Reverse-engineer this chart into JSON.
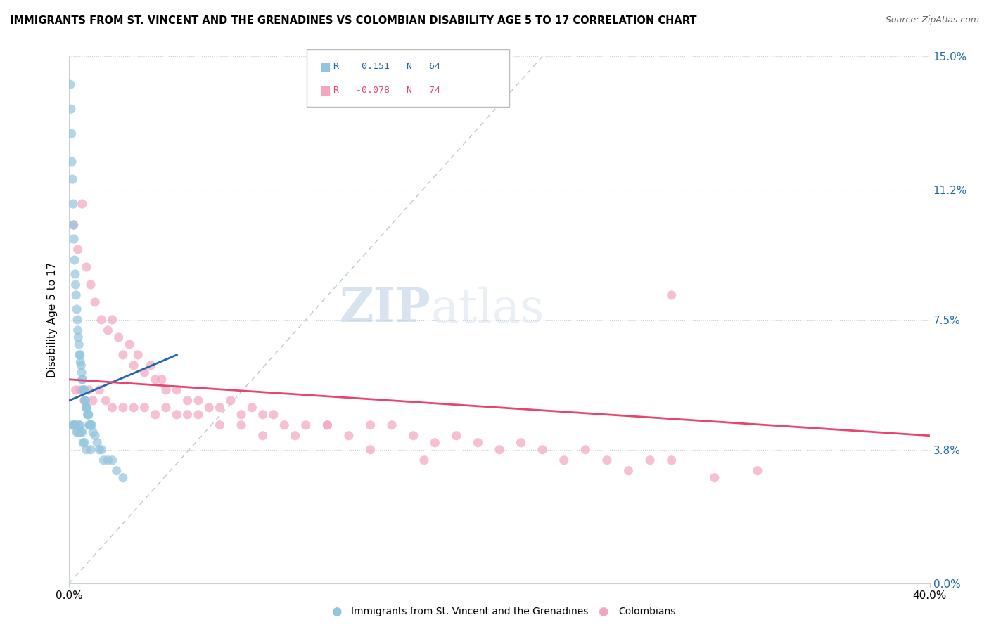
{
  "title": "IMMIGRANTS FROM ST. VINCENT AND THE GRENADINES VS COLOMBIAN DISABILITY AGE 5 TO 17 CORRELATION CHART",
  "source": "Source: ZipAtlas.com",
  "ylabel_label": "Disability Age 5 to 17",
  "legend_blue_label": "Immigrants from St. Vincent and the Grenadines",
  "legend_pink_label": "Colombians",
  "watermark_zip": "ZIP",
  "watermark_atlas": "atlas",
  "blue_color": "#92c5de",
  "pink_color": "#f4a6bf",
  "blue_line_color": "#2166ac",
  "pink_line_color": "#e8446e",
  "ref_line_color": "#b0b8cc",
  "xlim": [
    0.0,
    40.0
  ],
  "ylim": [
    0.0,
    15.0
  ],
  "ytick_values": [
    0.0,
    3.8,
    7.5,
    11.2,
    15.0
  ],
  "ytick_labels": [
    "0.0%",
    "3.8%",
    "7.5%",
    "11.2%",
    "15.0%"
  ],
  "xtick_values": [
    0.0,
    40.0
  ],
  "xtick_labels": [
    "0.0%",
    "40.0%"
  ],
  "blue_scatter_x": [
    0.05,
    0.08,
    0.1,
    0.12,
    0.15,
    0.18,
    0.2,
    0.22,
    0.25,
    0.28,
    0.3,
    0.32,
    0.35,
    0.38,
    0.4,
    0.42,
    0.45,
    0.48,
    0.5,
    0.52,
    0.55,
    0.58,
    0.6,
    0.62,
    0.65,
    0.68,
    0.7,
    0.72,
    0.75,
    0.78,
    0.8,
    0.82,
    0.85,
    0.88,
    0.9,
    0.92,
    0.95,
    0.98,
    1.0,
    1.05,
    1.1,
    1.2,
    1.3,
    1.4,
    1.5,
    1.6,
    1.8,
    2.0,
    2.2,
    2.5,
    0.15,
    0.2,
    0.25,
    0.3,
    0.35,
    0.4,
    0.45,
    0.5,
    0.55,
    0.6,
    0.65,
    0.7,
    0.8,
    1.0
  ],
  "blue_scatter_y": [
    14.2,
    13.5,
    12.8,
    12.0,
    11.5,
    10.8,
    10.2,
    9.8,
    9.2,
    8.8,
    8.5,
    8.2,
    7.8,
    7.5,
    7.2,
    7.0,
    6.8,
    6.5,
    6.5,
    6.3,
    6.2,
    6.0,
    5.8,
    5.8,
    5.5,
    5.5,
    5.5,
    5.2,
    5.2,
    5.0,
    5.0,
    5.0,
    4.8,
    4.8,
    4.8,
    4.5,
    4.5,
    4.5,
    4.5,
    4.5,
    4.3,
    4.2,
    4.0,
    3.8,
    3.8,
    3.5,
    3.5,
    3.5,
    3.2,
    3.0,
    4.5,
    4.5,
    4.5,
    4.5,
    4.3,
    4.3,
    4.5,
    4.5,
    4.3,
    4.3,
    4.0,
    4.0,
    3.8,
    3.8
  ],
  "pink_scatter_x": [
    0.2,
    0.4,
    0.6,
    0.8,
    1.0,
    1.2,
    1.5,
    1.8,
    2.0,
    2.3,
    2.5,
    2.8,
    3.0,
    3.2,
    3.5,
    3.8,
    4.0,
    4.3,
    4.5,
    5.0,
    5.5,
    6.0,
    6.5,
    7.0,
    7.5,
    8.0,
    8.5,
    9.0,
    9.5,
    10.0,
    11.0,
    12.0,
    13.0,
    14.0,
    15.0,
    16.0,
    17.0,
    18.0,
    19.0,
    20.0,
    21.0,
    22.0,
    23.0,
    24.0,
    25.0,
    26.0,
    27.0,
    28.0,
    30.0,
    32.0,
    0.3,
    0.5,
    0.7,
    0.9,
    1.1,
    1.4,
    1.7,
    2.0,
    2.5,
    3.0,
    3.5,
    4.0,
    4.5,
    5.0,
    5.5,
    6.0,
    7.0,
    8.0,
    9.0,
    10.5,
    12.0,
    14.0,
    16.5,
    28.0
  ],
  "pink_scatter_y": [
    10.2,
    9.5,
    10.8,
    9.0,
    8.5,
    8.0,
    7.5,
    7.2,
    7.5,
    7.0,
    6.5,
    6.8,
    6.2,
    6.5,
    6.0,
    6.2,
    5.8,
    5.8,
    5.5,
    5.5,
    5.2,
    5.2,
    5.0,
    5.0,
    5.2,
    4.8,
    5.0,
    4.8,
    4.8,
    4.5,
    4.5,
    4.5,
    4.2,
    4.5,
    4.5,
    4.2,
    4.0,
    4.2,
    4.0,
    3.8,
    4.0,
    3.8,
    3.5,
    3.8,
    3.5,
    3.2,
    3.5,
    3.5,
    3.0,
    3.2,
    5.5,
    5.5,
    5.2,
    5.5,
    5.2,
    5.5,
    5.2,
    5.0,
    5.0,
    5.0,
    5.0,
    4.8,
    5.0,
    4.8,
    4.8,
    4.8,
    4.5,
    4.5,
    4.2,
    4.2,
    4.5,
    3.8,
    3.5,
    8.2
  ],
  "blue_trend_x0": 0.0,
  "blue_trend_x1": 5.0,
  "blue_trend_y0": 5.2,
  "blue_trend_y1": 6.5,
  "pink_trend_x0": 0.0,
  "pink_trend_x1": 40.0,
  "pink_trend_y0": 5.8,
  "pink_trend_y1": 4.2
}
